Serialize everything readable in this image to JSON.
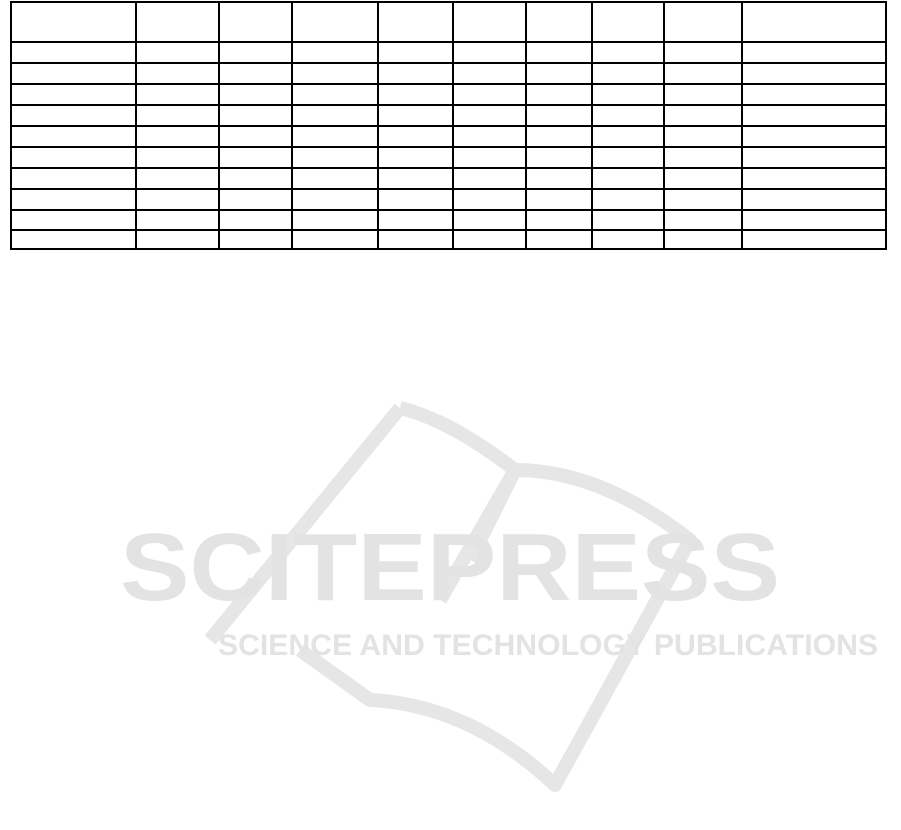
{
  "table": {
    "columns": 10,
    "header_row": [
      "",
      "",
      "",
      "",
      "",
      "",
      "",
      "",
      "",
      ""
    ],
    "rows": [
      [
        "",
        "",
        "",
        "",
        "",
        "",
        "",
        "",
        "",
        ""
      ],
      [
        "",
        "",
        "",
        "",
        "",
        "",
        "",
        "",
        "",
        ""
      ],
      [
        "",
        "",
        "",
        "",
        "",
        "",
        "",
        "",
        "",
        ""
      ],
      [
        "",
        "",
        "",
        "",
        "",
        "",
        "",
        "",
        "",
        ""
      ],
      [
        "",
        "",
        "",
        "",
        "",
        "",
        "",
        "",
        "",
        ""
      ],
      [
        "",
        "",
        "",
        "",
        "",
        "",
        "",
        "",
        "",
        ""
      ],
      [
        "",
        "",
        "",
        "",
        "",
        "",
        "",
        "",
        "",
        ""
      ],
      [
        "",
        "",
        "",
        "",
        "",
        "",
        "",
        "",
        "",
        ""
      ],
      [
        "",
        "",
        "",
        "",
        "",
        "",
        "",
        "",
        "",
        ""
      ],
      [
        "",
        "",
        "",
        "",
        "",
        "",
        "",
        "",
        "",
        ""
      ]
    ]
  },
  "watermark": {
    "title": "SCITEPRESS",
    "subtitle": "SCIENCE AND TECHNOLOGY PUBLICATIONS",
    "color": "#e6e6e6"
  }
}
